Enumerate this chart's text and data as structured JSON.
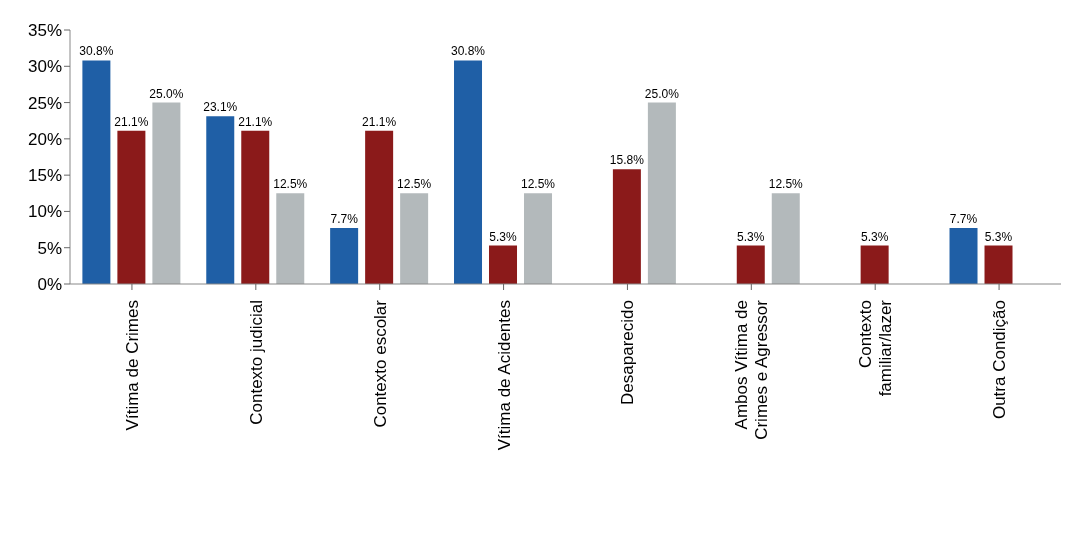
{
  "chart_data": {
    "type": "bar",
    "categories": [
      "Vítima de Crimes",
      "Contexto judicial",
      "Contexto escolar",
      "Vítima de Acidentes",
      "Desaparecido",
      "Ambos Vítima de Crimes e Agressor",
      "Contexto familiar/lazer",
      "Outra Condição"
    ],
    "series": [
      {
        "color": "#1f5fa6",
        "values": [
          30.8,
          23.1,
          7.7,
          30.8,
          null,
          null,
          null,
          7.7
        ],
        "value_labels": [
          "30.8%",
          "23.1%",
          "7.7%",
          "30.8%",
          null,
          null,
          null,
          "7.7%"
        ]
      },
      {
        "color": "#8b1a1a",
        "values": [
          21.1,
          21.1,
          21.1,
          5.3,
          15.8,
          5.3,
          5.3,
          5.3
        ],
        "value_labels": [
          "21.1%",
          "21.1%",
          "21.1%",
          "5.3%",
          "15.8%",
          "5.3%",
          "5.3%",
          "5.3%"
        ]
      },
      {
        "color": "#b3b9bb",
        "values": [
          25.0,
          12.5,
          12.5,
          12.5,
          25.0,
          12.5,
          null,
          null
        ],
        "value_labels": [
          "25.0%",
          "12.5%",
          "12.5%",
          "12.5%",
          "25.0%",
          "12.5%",
          null,
          null
        ]
      }
    ],
    "ylim": [
      0,
      35
    ],
    "yticks": [
      {
        "value": 0,
        "label": "0%"
      },
      {
        "value": 5,
        "label": "5%"
      },
      {
        "value": 10,
        "label": "10%"
      },
      {
        "value": 15,
        "label": "15%"
      },
      {
        "value": 20,
        "label": "20%"
      },
      {
        "value": 25,
        "label": "25%"
      },
      {
        "value": 30,
        "label": "30%"
      },
      {
        "value": 35,
        "label": "35%"
      }
    ],
    "grid": false,
    "legend": false
  }
}
